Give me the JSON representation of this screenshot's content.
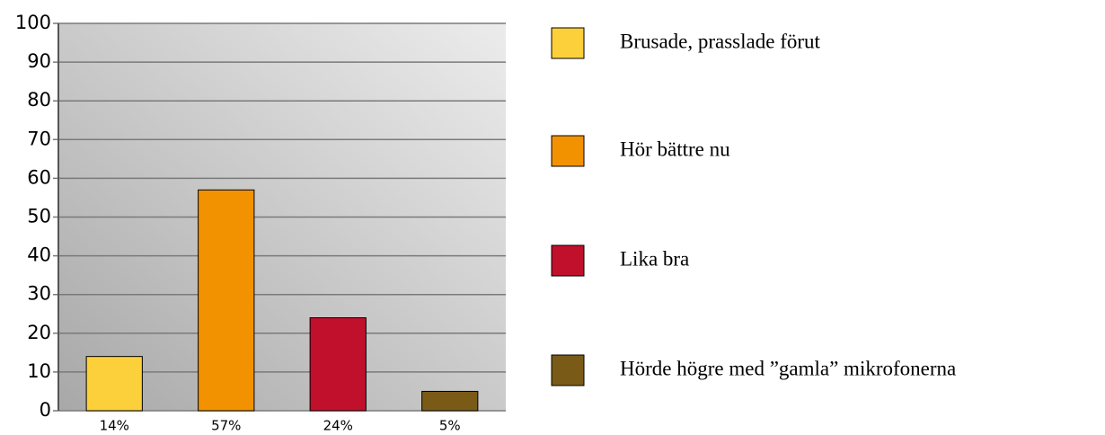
{
  "chart_data": {
    "type": "bar",
    "categories": [
      "Brusade, prasslade förut",
      "Hör bättre nu",
      "Lika bra",
      "Hörde högre med ”gamla” mikrofonerna"
    ],
    "values": [
      14,
      57,
      24,
      5
    ],
    "value_labels": [
      "14%",
      "57%",
      "24%",
      "5%"
    ],
    "colors": [
      "#fcd03a",
      "#f29200",
      "#c1102b",
      "#7a5a17"
    ],
    "ylim": [
      0,
      100
    ],
    "yticks": [
      0,
      10,
      20,
      30,
      40,
      50,
      60,
      70,
      80,
      90,
      100
    ],
    "grid": true,
    "legend": "right"
  }
}
